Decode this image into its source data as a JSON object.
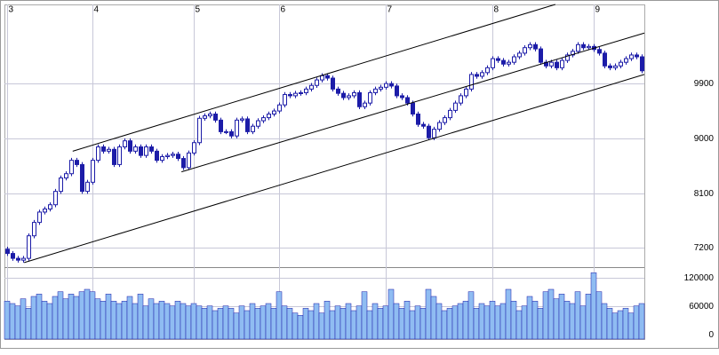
{
  "chart_data": {
    "type": "candlestick",
    "categories": [
      "3",
      null,
      null,
      null,
      null,
      null,
      null,
      null,
      null,
      null,
      null,
      null,
      null,
      null,
      null,
      null,
      "4",
      null,
      null,
      null,
      null,
      null,
      null,
      null,
      null,
      null,
      null,
      null,
      null,
      null,
      null,
      null,
      null,
      null,
      null,
      "5",
      null,
      null,
      null,
      null,
      null,
      null,
      null,
      null,
      null,
      null,
      null,
      null,
      null,
      null,
      null,
      "6",
      null,
      null,
      null,
      null,
      null,
      null,
      null,
      null,
      null,
      null,
      null,
      null,
      null,
      null,
      null,
      null,
      null,
      null,
      null,
      "7",
      null,
      null,
      null,
      null,
      null,
      null,
      null,
      null,
      null,
      null,
      null,
      null,
      null,
      null,
      null,
      null,
      null,
      null,
      null,
      "8",
      null,
      null,
      null,
      null,
      null,
      null,
      null,
      null,
      null,
      null,
      null,
      null,
      null,
      null,
      null,
      null,
      null,
      null,
      "9",
      null,
      null,
      null,
      null,
      null,
      null,
      null,
      null,
      null
    ],
    "open": [
      7180,
      7110,
      7030,
      7000,
      7030,
      7400,
      7620,
      7790,
      7840,
      7910,
      8130,
      8350,
      8420,
      8640,
      8570,
      8130,
      8280,
      8640,
      8860,
      8790,
      8820,
      8570,
      8860,
      8960,
      8790,
      8860,
      8720,
      8860,
      8790,
      8640,
      8700,
      8720,
      8740,
      8670,
      8520,
      8760,
      8930,
      9330,
      9370,
      9400,
      9300,
      9110,
      9110,
      9040,
      9300,
      9320,
      9110,
      9200,
      9290,
      9340,
      9400,
      9450,
      9550,
      9720,
      9700,
      9740,
      9750,
      9810,
      9870,
      9960,
      10030,
      9990,
      9810,
      9740,
      9670,
      9700,
      9750,
      9520,
      9580,
      9750,
      9810,
      9840,
      9900,
      9860,
      9700,
      9670,
      9580,
      9400,
      9230,
      9200,
      9010,
      9150,
      9260,
      9340,
      9460,
      9580,
      9700,
      9810,
      10050,
      10020,
      10080,
      10160,
      10310,
      10280,
      10220,
      10250,
      10340,
      10400,
      10490,
      10540,
      10470,
      10250,
      10190,
      10250,
      10160,
      10280,
      10370,
      10430,
      10540,
      10490,
      10510,
      10460,
      10400,
      10190,
      10160,
      10190,
      10250,
      10310,
      10370,
      10340
    ],
    "high": [
      7220,
      7150,
      7070,
      7070,
      7440,
      7660,
      7830,
      7880,
      7950,
      8170,
      8390,
      8460,
      8680,
      8680,
      8610,
      8320,
      8680,
      8900,
      8900,
      8860,
      8860,
      8900,
      9000,
      9000,
      8900,
      8900,
      8900,
      8900,
      8830,
      8740,
      8760,
      8780,
      8780,
      8710,
      8800,
      8970,
      9370,
      9410,
      9440,
      9440,
      9340,
      9150,
      9150,
      9340,
      9360,
      9360,
      9240,
      9330,
      9380,
      9440,
      9490,
      9590,
      9760,
      9760,
      9780,
      9790,
      9850,
      9910,
      10000,
      10070,
      10070,
      10030,
      9850,
      9780,
      9740,
      9790,
      9790,
      9620,
      9790,
      9850,
      9880,
      9940,
      9940,
      9900,
      9740,
      9710,
      9620,
      9440,
      9270,
      9240,
      9190,
      9300,
      9380,
      9500,
      9620,
      9740,
      9850,
      10090,
      10090,
      10120,
      10200,
      10350,
      10350,
      10320,
      10290,
      10380,
      10440,
      10530,
      10580,
      10580,
      10510,
      10290,
      10290,
      10290,
      10320,
      10410,
      10470,
      10580,
      10580,
      10550,
      10550,
      10500,
      10440,
      10230,
      10230,
      10290,
      10350,
      10410,
      10410,
      10380
    ],
    "low": [
      7070,
      6990,
      6960,
      6960,
      6990,
      7360,
      7580,
      7750,
      7800,
      7870,
      8090,
      8310,
      8380,
      8530,
      8090,
      8090,
      8240,
      8600,
      8750,
      8750,
      8530,
      8530,
      8820,
      8750,
      8750,
      8680,
      8680,
      8750,
      8600,
      8600,
      8660,
      8680,
      8630,
      8480,
      8480,
      8720,
      8890,
      9290,
      9330,
      9260,
      9070,
      9070,
      9000,
      9000,
      9260,
      9070,
      9070,
      9160,
      9250,
      9300,
      9360,
      9410,
      9510,
      9660,
      9660,
      9700,
      9710,
      9770,
      9830,
      9920,
      9950,
      9770,
      9700,
      9630,
      9630,
      9660,
      9480,
      9480,
      9540,
      9710,
      9770,
      9800,
      9820,
      9660,
      9630,
      9540,
      9360,
      9190,
      9160,
      8970,
      8970,
      9110,
      9220,
      9300,
      9420,
      9540,
      9660,
      9770,
      9980,
      9980,
      10040,
      10120,
      10240,
      10180,
      10180,
      10210,
      10300,
      10360,
      10450,
      10430,
      10210,
      10150,
      10150,
      10120,
      10120,
      10240,
      10330,
      10390,
      10450,
      10450,
      10420,
      10360,
      10150,
      10120,
      10120,
      10150,
      10210,
      10270,
      10300,
      10070
    ],
    "close": [
      7110,
      7030,
      7000,
      7030,
      7400,
      7620,
      7790,
      7840,
      7910,
      8130,
      8350,
      8420,
      8640,
      8570,
      8130,
      8280,
      8640,
      8860,
      8790,
      8820,
      8570,
      8860,
      8960,
      8790,
      8860,
      8720,
      8860,
      8790,
      8640,
      8700,
      8720,
      8740,
      8670,
      8520,
      8760,
      8930,
      9330,
      9370,
      9400,
      9300,
      9110,
      9110,
      9040,
      9300,
      9320,
      9110,
      9200,
      9290,
      9340,
      9400,
      9450,
      9550,
      9720,
      9700,
      9740,
      9750,
      9810,
      9870,
      9960,
      10030,
      9990,
      9810,
      9740,
      9670,
      9700,
      9750,
      9520,
      9580,
      9750,
      9810,
      9840,
      9900,
      9860,
      9700,
      9670,
      9580,
      9400,
      9230,
      9200,
      9010,
      9150,
      9260,
      9340,
      9460,
      9580,
      9700,
      9810,
      10050,
      10020,
      10080,
      10160,
      10310,
      10280,
      10220,
      10250,
      10340,
      10400,
      10490,
      10540,
      10470,
      10250,
      10190,
      10250,
      10160,
      10280,
      10370,
      10430,
      10540,
      10490,
      10510,
      10460,
      10400,
      10190,
      10160,
      10190,
      10250,
      10310,
      10370,
      10340,
      10110
    ],
    "ylim": [
      6900,
      11200
    ],
    "yticks": [
      7200,
      8100,
      9000,
      9900
    ],
    "up_color": "#ffffff",
    "down_color": "#1c1ca8",
    "edge_color": "#1c1ca8",
    "grid": true,
    "channel_lines": [
      {
        "x": [
          12.3,
          102.8
        ],
        "y": [
          8790,
          11200
        ],
        "color": "#000000"
      },
      {
        "x": [
          32.7,
          119.5
        ],
        "y": [
          8450,
          10730
        ],
        "color": "#000000"
      },
      {
        "x": [
          3.2,
          119.5
        ],
        "y": [
          6960,
          10050
        ],
        "color": "#000000"
      }
    ],
    "volume": {
      "values": [
        80000,
        75000,
        70000,
        85000,
        65000,
        90000,
        95000,
        80000,
        75000,
        90000,
        100000,
        85000,
        95000,
        90000,
        100000,
        105000,
        100000,
        85000,
        80000,
        95000,
        80000,
        75000,
        80000,
        90000,
        75000,
        95000,
        70000,
        85000,
        75000,
        80000,
        75000,
        70000,
        80000,
        75000,
        70000,
        75000,
        70000,
        65000,
        70000,
        60000,
        65000,
        70000,
        65000,
        55000,
        70000,
        60000,
        75000,
        65000,
        70000,
        75000,
        65000,
        100000,
        70000,
        65000,
        55000,
        50000,
        65000,
        60000,
        75000,
        55000,
        80000,
        60000,
        70000,
        65000,
        75000,
        60000,
        70000,
        100000,
        60000,
        75000,
        65000,
        70000,
        105000,
        75000,
        65000,
        80000,
        60000,
        70000,
        65000,
        105000,
        90000,
        75000,
        60000,
        65000,
        70000,
        75000,
        80000,
        100000,
        65000,
        75000,
        70000,
        80000,
        70000,
        75000,
        105000,
        80000,
        60000,
        70000,
        90000,
        80000,
        65000,
        100000,
        105000,
        85000,
        95000,
        80000,
        75000,
        100000,
        70000,
        95000,
        140000,
        100000,
        75000,
        65000,
        55000,
        60000,
        65000,
        55000,
        70000,
        75000
      ],
      "ylim": [
        0,
        150000
      ],
      "yticks": [
        0,
        60000,
        120000
      ],
      "color": "#8fbcf2",
      "edge_color": "#1c1ca8"
    }
  }
}
